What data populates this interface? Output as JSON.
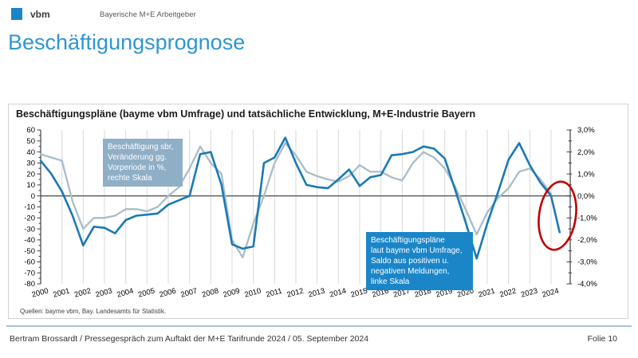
{
  "header": {
    "logo_text": "vbm",
    "org_name": "Bayerische M+E Arbeitgeber",
    "logo_color": "#1a86c8"
  },
  "page_title": "Beschäftigungsprognose",
  "chart": {
    "source": "Quellen: bayme vbm, Bay. Landesamts für Statistik.",
    "annotations": {
      "actual": "Beschäftigung sbr,\nVeränderung gg.\nVorperiode in %,\nrechte Skala",
      "survey": "Beschäftigungspläne\nlaut bayme  vbm Umfrage,\nSaldo aus positiven u.\nnegativen Meldungen,\nlinke Skala"
    },
    "annotation_colors": {
      "actual_bg": "#8fafc7",
      "survey_bg": "#1a86c8"
    }
  },
  "chart_data": {
    "type": "line",
    "title": "Beschäftigungspläne (bayme vbm Umfrage) und tatsächliche Entwicklung, M+E-Industrie Bayern",
    "x_range": [
      2000,
      2024.9
    ],
    "x_ticks": [
      2000,
      2001,
      2002,
      2003,
      2004,
      2005,
      2006,
      2007,
      2008,
      2009,
      2010,
      2011,
      2012,
      2013,
      2014,
      2015,
      2016,
      2017,
      2018,
      2019,
      2020,
      2021,
      2022,
      2023,
      2024
    ],
    "left_axis": {
      "min": -80,
      "max": 60,
      "tick_step": 10,
      "minor_step": 5
    },
    "right_axis": {
      "min": -4.0,
      "max": 3.0,
      "tick_step": 1.0,
      "minor_step": 0.5,
      "tick_labels": [
        "3,0%",
        "2,0%",
        "1,0%",
        "0,0%",
        "-1,0%",
        "-2,0%",
        "-3,0%",
        "-4,0%"
      ],
      "tick_values": [
        3,
        2,
        1,
        0,
        -1,
        -2,
        -3,
        -4
      ]
    },
    "grid": {
      "vertical_gridlines_per_year": true,
      "zero_line": true,
      "legend": "none"
    },
    "series": [
      {
        "name": "Beschäftigung sbr, Veränderung gg. Vorperiode in %, rechte Skala",
        "axis": "right",
        "color": "#a9bdc9",
        "points": [
          [
            2000,
            1.9
          ],
          [
            2000.5,
            1.75
          ],
          [
            2001,
            1.6
          ],
          [
            2001.5,
            -0.25
          ],
          [
            2002,
            -1.5
          ],
          [
            2002.5,
            -1.0
          ],
          [
            2003,
            -1.0
          ],
          [
            2003.5,
            -0.9
          ],
          [
            2004,
            -0.6
          ],
          [
            2004.5,
            -0.6
          ],
          [
            2005,
            -0.7
          ],
          [
            2005.5,
            -0.5
          ],
          [
            2006,
            0.0
          ],
          [
            2006.5,
            0.4
          ],
          [
            2007,
            1.25
          ],
          [
            2007.5,
            2.25
          ],
          [
            2008,
            1.5
          ],
          [
            2008.5,
            1.0
          ],
          [
            2009,
            -2.0
          ],
          [
            2009.5,
            -2.8
          ],
          [
            2010,
            -1.25
          ],
          [
            2010.5,
            0.0
          ],
          [
            2011,
            1.5
          ],
          [
            2011.5,
            2.4
          ],
          [
            2012,
            1.85
          ],
          [
            2012.5,
            1.1
          ],
          [
            2013,
            0.9
          ],
          [
            2013.5,
            0.75
          ],
          [
            2014,
            0.65
          ],
          [
            2014.5,
            0.9
          ],
          [
            2015,
            1.4
          ],
          [
            2015.5,
            1.1
          ],
          [
            2016,
            1.1
          ],
          [
            2016.5,
            0.85
          ],
          [
            2017,
            0.7
          ],
          [
            2017.5,
            1.5
          ],
          [
            2018,
            2.0
          ],
          [
            2018.5,
            1.75
          ],
          [
            2019,
            1.25
          ],
          [
            2019.5,
            0.4
          ],
          [
            2020,
            -0.65
          ],
          [
            2020.5,
            -1.75
          ],
          [
            2021,
            -0.75
          ],
          [
            2021.5,
            -0.1
          ],
          [
            2022,
            0.35
          ],
          [
            2022.5,
            1.1
          ],
          [
            2023,
            1.25
          ],
          [
            2023.5,
            0.75
          ],
          [
            2024,
            0.1
          ]
        ]
      },
      {
        "name": "Beschäftigungspläne laut bayme vbm Umfrage, Saldo aus positiven u. negativen Meldungen, linke Skala",
        "axis": "left",
        "color": "#1b7ab5",
        "points": [
          [
            2000,
            32
          ],
          [
            2000.5,
            20
          ],
          [
            2001,
            4
          ],
          [
            2001.5,
            -18
          ],
          [
            2002,
            -45
          ],
          [
            2002.5,
            -28
          ],
          [
            2003,
            -29
          ],
          [
            2003.5,
            -34
          ],
          [
            2004,
            -22
          ],
          [
            2004.5,
            -18
          ],
          [
            2005,
            -17
          ],
          [
            2005.5,
            -16
          ],
          [
            2006,
            -8
          ],
          [
            2006.5,
            -4
          ],
          [
            2007,
            0
          ],
          [
            2007.5,
            38
          ],
          [
            2008,
            40
          ],
          [
            2008.5,
            10
          ],
          [
            2009,
            -44
          ],
          [
            2009.5,
            -48
          ],
          [
            2010,
            -46
          ],
          [
            2010.5,
            30
          ],
          [
            2011,
            35
          ],
          [
            2011.5,
            53
          ],
          [
            2012,
            30
          ],
          [
            2012.5,
            10
          ],
          [
            2013,
            8
          ],
          [
            2013.5,
            7
          ],
          [
            2014,
            15
          ],
          [
            2014.5,
            24
          ],
          [
            2015,
            9
          ],
          [
            2015.5,
            17
          ],
          [
            2016,
            19
          ],
          [
            2016.5,
            37
          ],
          [
            2017,
            38
          ],
          [
            2017.5,
            40
          ],
          [
            2018,
            45
          ],
          [
            2018.5,
            43
          ],
          [
            2019,
            34
          ],
          [
            2019.5,
            5
          ],
          [
            2020,
            -25
          ],
          [
            2020.5,
            -57
          ],
          [
            2021,
            -25
          ],
          [
            2021.5,
            3
          ],
          [
            2022,
            33
          ],
          [
            2022.5,
            48
          ],
          [
            2023,
            28
          ],
          [
            2023.5,
            12
          ],
          [
            2024,
            0
          ],
          [
            2024.4,
            -33
          ]
        ]
      }
    ],
    "highlight": {
      "shape": "ellipse",
      "x": 2024.3,
      "y_left_units": -18,
      "color": "#c00000"
    }
  },
  "footer": {
    "left_text": "Bertram Brossardt  /  Pressegespräch zum Auftakt der M+E Tarifrunde 2024  /  05. September 2024",
    "slide_label": "Folie 10"
  },
  "colors": {
    "accent_blue": "#2f96d2",
    "line_survey": "#1b7ab5",
    "line_actual": "#a9bdc9",
    "highlight_red": "#c00000",
    "zero_line": "#595959",
    "gridline": "#d9d9d9",
    "divider": "#a9c3d2"
  }
}
